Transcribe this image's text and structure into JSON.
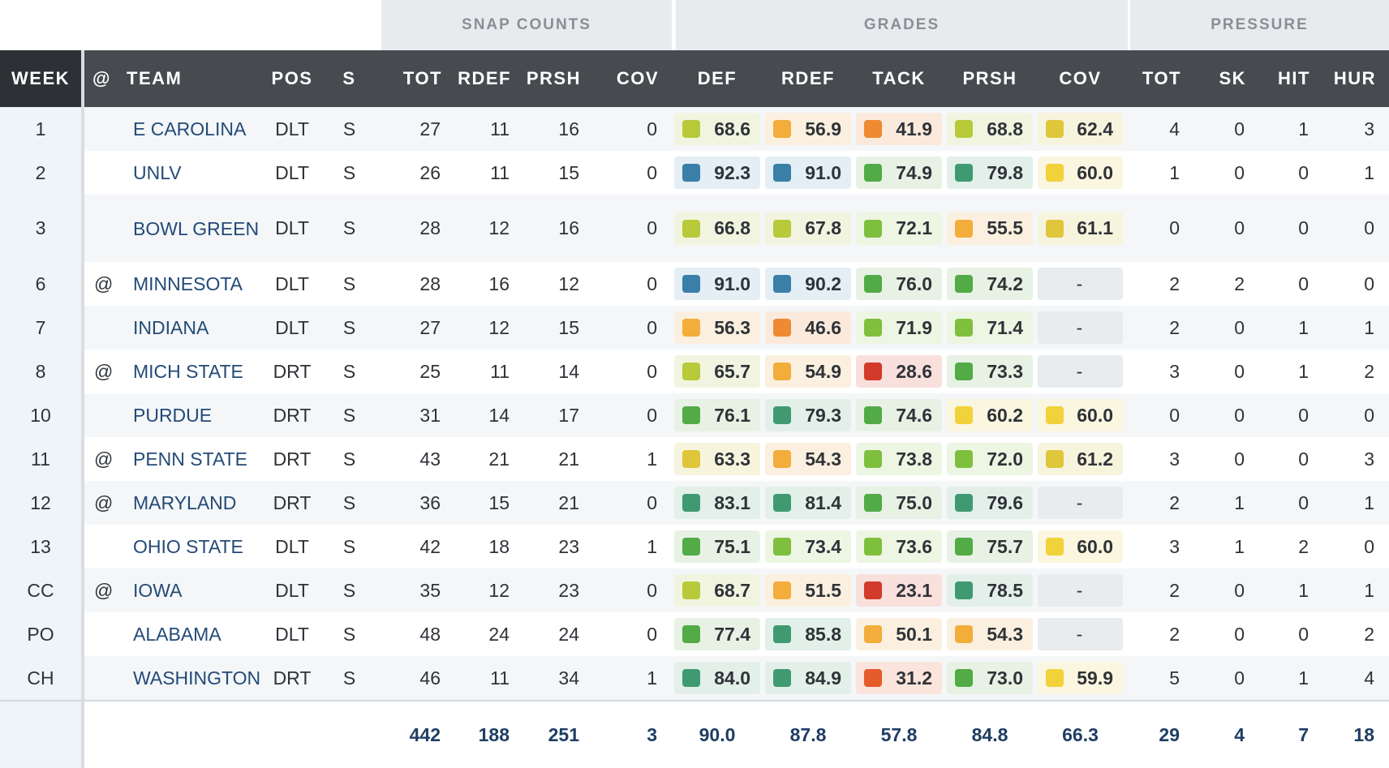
{
  "groups": {
    "snap": "SNAP COUNTS",
    "grades": "GRADES",
    "pressure": "PRESSURE"
  },
  "columns": {
    "week": "WEEK",
    "at": "@",
    "team": "TEAM",
    "pos": "POS",
    "s": "S",
    "tot": "TOT",
    "rdef": "RDEF",
    "prsh": "PRSH",
    "cov": "COV",
    "g_def": "DEF",
    "g_rdef": "RDEF",
    "g_tack": "TACK",
    "g_prsh": "PRSH",
    "g_cov": "COV",
    "p_tot": "TOT",
    "p_sk": "SK",
    "p_hit": "HIT",
    "p_hur": "HUR"
  },
  "grade_colors": {
    "dark_blue": "#3a7fa8",
    "teal_green": "#3f9a72",
    "green": "#52ab46",
    "light_green": "#7fbf3e",
    "yellow_green": "#b8c93a",
    "yellow": "#f2d23a",
    "mustard": "#e0c63a",
    "light_orange": "#f2ad3a",
    "orange": "#ee8a32",
    "red_orange": "#e35c2a",
    "red": "#d23a2a"
  },
  "rows": [
    {
      "week": "1",
      "at": "",
      "team": "E CAROLINA",
      "pos": "DLT",
      "s": "S",
      "tot": "27",
      "rdef": "11",
      "prsh": "16",
      "cov": "0",
      "grades": [
        {
          "v": "68.6",
          "c": "yellow_green"
        },
        {
          "v": "56.9",
          "c": "light_orange"
        },
        {
          "v": "41.9",
          "c": "orange"
        },
        {
          "v": "68.8",
          "c": "yellow_green"
        },
        {
          "v": "62.4",
          "c": "mustard"
        }
      ],
      "p_tot": "4",
      "p_sk": "0",
      "p_hit": "1",
      "p_hur": "3"
    },
    {
      "week": "2",
      "at": "",
      "team": "UNLV",
      "pos": "DLT",
      "s": "S",
      "tot": "26",
      "rdef": "11",
      "prsh": "15",
      "cov": "0",
      "grades": [
        {
          "v": "92.3",
          "c": "dark_blue"
        },
        {
          "v": "91.0",
          "c": "dark_blue"
        },
        {
          "v": "74.9",
          "c": "green"
        },
        {
          "v": "79.8",
          "c": "teal_green"
        },
        {
          "v": "60.0",
          "c": "yellow"
        }
      ],
      "p_tot": "1",
      "p_sk": "0",
      "p_hit": "0",
      "p_hur": "1"
    },
    {
      "week": "3",
      "at": "",
      "team": "BOWL GREEN",
      "pos": "DLT",
      "s": "S",
      "tot": "28",
      "rdef": "12",
      "prsh": "16",
      "cov": "0",
      "tall": true,
      "grades": [
        {
          "v": "66.8",
          "c": "yellow_green"
        },
        {
          "v": "67.8",
          "c": "yellow_green"
        },
        {
          "v": "72.1",
          "c": "light_green"
        },
        {
          "v": "55.5",
          "c": "light_orange"
        },
        {
          "v": "61.1",
          "c": "mustard"
        }
      ],
      "p_tot": "0",
      "p_sk": "0",
      "p_hit": "0",
      "p_hur": "0"
    },
    {
      "week": "6",
      "at": "@",
      "team": "MINNESOTA",
      "pos": "DLT",
      "s": "S",
      "tot": "28",
      "rdef": "16",
      "prsh": "12",
      "cov": "0",
      "grades": [
        {
          "v": "91.0",
          "c": "dark_blue"
        },
        {
          "v": "90.2",
          "c": "dark_blue"
        },
        {
          "v": "76.0",
          "c": "green"
        },
        {
          "v": "74.2",
          "c": "green"
        },
        {
          "v": "-",
          "c": ""
        }
      ],
      "p_tot": "2",
      "p_sk": "2",
      "p_hit": "0",
      "p_hur": "0"
    },
    {
      "week": "7",
      "at": "",
      "team": "INDIANA",
      "pos": "DLT",
      "s": "S",
      "tot": "27",
      "rdef": "12",
      "prsh": "15",
      "cov": "0",
      "grades": [
        {
          "v": "56.3",
          "c": "light_orange"
        },
        {
          "v": "46.6",
          "c": "orange"
        },
        {
          "v": "71.9",
          "c": "light_green"
        },
        {
          "v": "71.4",
          "c": "light_green"
        },
        {
          "v": "-",
          "c": ""
        }
      ],
      "p_tot": "2",
      "p_sk": "0",
      "p_hit": "1",
      "p_hur": "1"
    },
    {
      "week": "8",
      "at": "@",
      "team": "MICH STATE",
      "pos": "DRT",
      "s": "S",
      "tot": "25",
      "rdef": "11",
      "prsh": "14",
      "cov": "0",
      "grades": [
        {
          "v": "65.7",
          "c": "yellow_green"
        },
        {
          "v": "54.9",
          "c": "light_orange"
        },
        {
          "v": "28.6",
          "c": "red"
        },
        {
          "v": "73.3",
          "c": "green"
        },
        {
          "v": "-",
          "c": ""
        }
      ],
      "p_tot": "3",
      "p_sk": "0",
      "p_hit": "1",
      "p_hur": "2"
    },
    {
      "week": "10",
      "at": "",
      "team": "PURDUE",
      "pos": "DRT",
      "s": "S",
      "tot": "31",
      "rdef": "14",
      "prsh": "17",
      "cov": "0",
      "grades": [
        {
          "v": "76.1",
          "c": "green"
        },
        {
          "v": "79.3",
          "c": "teal_green"
        },
        {
          "v": "74.6",
          "c": "green"
        },
        {
          "v": "60.2",
          "c": "yellow"
        },
        {
          "v": "60.0",
          "c": "yellow"
        }
      ],
      "p_tot": "0",
      "p_sk": "0",
      "p_hit": "0",
      "p_hur": "0"
    },
    {
      "week": "11",
      "at": "@",
      "team": "PENN STATE",
      "pos": "DRT",
      "s": "S",
      "tot": "43",
      "rdef": "21",
      "prsh": "21",
      "cov": "1",
      "grades": [
        {
          "v": "63.3",
          "c": "mustard"
        },
        {
          "v": "54.3",
          "c": "light_orange"
        },
        {
          "v": "73.8",
          "c": "light_green"
        },
        {
          "v": "72.0",
          "c": "light_green"
        },
        {
          "v": "61.2",
          "c": "mustard"
        }
      ],
      "p_tot": "3",
      "p_sk": "0",
      "p_hit": "0",
      "p_hur": "3"
    },
    {
      "week": "12",
      "at": "@",
      "team": "MARYLAND",
      "pos": "DRT",
      "s": "S",
      "tot": "36",
      "rdef": "15",
      "prsh": "21",
      "cov": "0",
      "grades": [
        {
          "v": "83.1",
          "c": "teal_green"
        },
        {
          "v": "81.4",
          "c": "teal_green"
        },
        {
          "v": "75.0",
          "c": "green"
        },
        {
          "v": "79.6",
          "c": "teal_green"
        },
        {
          "v": "-",
          "c": ""
        }
      ],
      "p_tot": "2",
      "p_sk": "1",
      "p_hit": "0",
      "p_hur": "1"
    },
    {
      "week": "13",
      "at": "",
      "team": "OHIO STATE",
      "pos": "DLT",
      "s": "S",
      "tot": "42",
      "rdef": "18",
      "prsh": "23",
      "cov": "1",
      "grades": [
        {
          "v": "75.1",
          "c": "green"
        },
        {
          "v": "73.4",
          "c": "light_green"
        },
        {
          "v": "73.6",
          "c": "light_green"
        },
        {
          "v": "75.7",
          "c": "green"
        },
        {
          "v": "60.0",
          "c": "yellow"
        }
      ],
      "p_tot": "3",
      "p_sk": "1",
      "p_hit": "2",
      "p_hur": "0"
    },
    {
      "week": "CC",
      "at": "@",
      "team": "IOWA",
      "pos": "DLT",
      "s": "S",
      "tot": "35",
      "rdef": "12",
      "prsh": "23",
      "cov": "0",
      "grades": [
        {
          "v": "68.7",
          "c": "yellow_green"
        },
        {
          "v": "51.5",
          "c": "light_orange"
        },
        {
          "v": "23.1",
          "c": "red"
        },
        {
          "v": "78.5",
          "c": "teal_green"
        },
        {
          "v": "-",
          "c": ""
        }
      ],
      "p_tot": "2",
      "p_sk": "0",
      "p_hit": "1",
      "p_hur": "1"
    },
    {
      "week": "PO",
      "at": "",
      "team": "ALABAMA",
      "pos": "DLT",
      "s": "S",
      "tot": "48",
      "rdef": "24",
      "prsh": "24",
      "cov": "0",
      "grades": [
        {
          "v": "77.4",
          "c": "green"
        },
        {
          "v": "85.8",
          "c": "teal_green"
        },
        {
          "v": "50.1",
          "c": "light_orange"
        },
        {
          "v": "54.3",
          "c": "light_orange"
        },
        {
          "v": "-",
          "c": ""
        }
      ],
      "p_tot": "2",
      "p_sk": "0",
      "p_hit": "0",
      "p_hur": "2"
    },
    {
      "week": "CH",
      "at": "",
      "team": "WASHINGTON",
      "pos": "DRT",
      "s": "S",
      "tot": "46",
      "rdef": "11",
      "prsh": "34",
      "cov": "1",
      "grades": [
        {
          "v": "84.0",
          "c": "teal_green"
        },
        {
          "v": "84.9",
          "c": "teal_green"
        },
        {
          "v": "31.2",
          "c": "red_orange"
        },
        {
          "v": "73.0",
          "c": "green"
        },
        {
          "v": "59.9",
          "c": "yellow"
        }
      ],
      "p_tot": "5",
      "p_sk": "0",
      "p_hit": "1",
      "p_hur": "4"
    }
  ],
  "totals": {
    "tot": "442",
    "rdef": "188",
    "prsh": "251",
    "cov": "3",
    "g_def": "90.0",
    "g_rdef": "87.8",
    "g_tack": "57.8",
    "g_prsh": "84.8",
    "g_cov": "66.3",
    "p_tot": "29",
    "p_sk": "4",
    "p_hit": "7",
    "p_hur": "18"
  }
}
